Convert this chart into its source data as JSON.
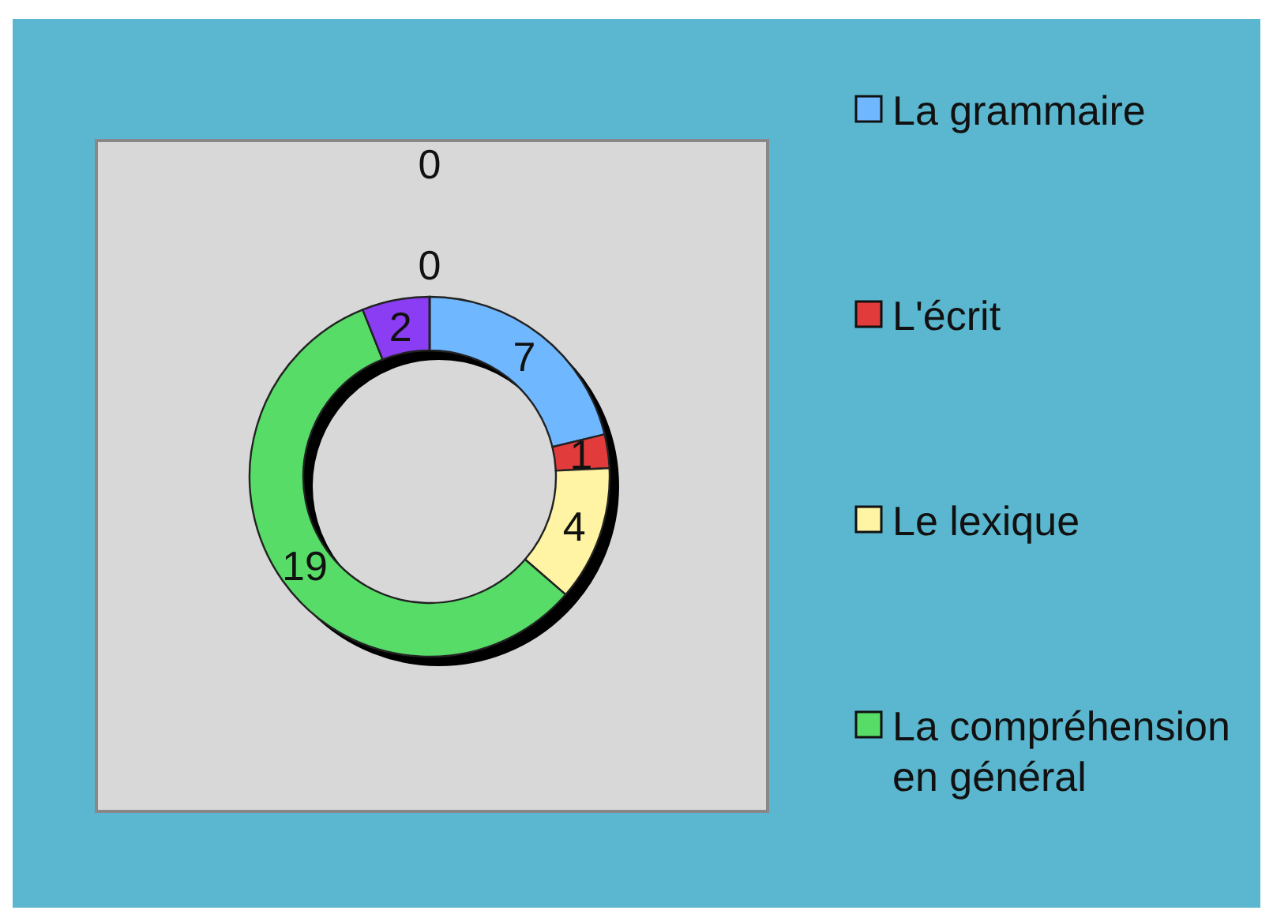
{
  "chart_data": {
    "type": "donut",
    "categories": [
      "La grammaire",
      "L'écrit",
      "Le lexique",
      "La compréhension en général",
      null,
      null,
      null
    ],
    "values": [
      7,
      1,
      4,
      19,
      2,
      0,
      0
    ],
    "colors": [
      "#6fb7ff",
      "#e23b3b",
      "#fff4a3",
      "#57dc68",
      "#8a3df2",
      "#b0b0b0",
      "#b0b0b0"
    ],
    "value_labels": [
      "7",
      "1",
      "4",
      "19",
      "2",
      "0",
      "0"
    ],
    "legend": "right"
  }
}
